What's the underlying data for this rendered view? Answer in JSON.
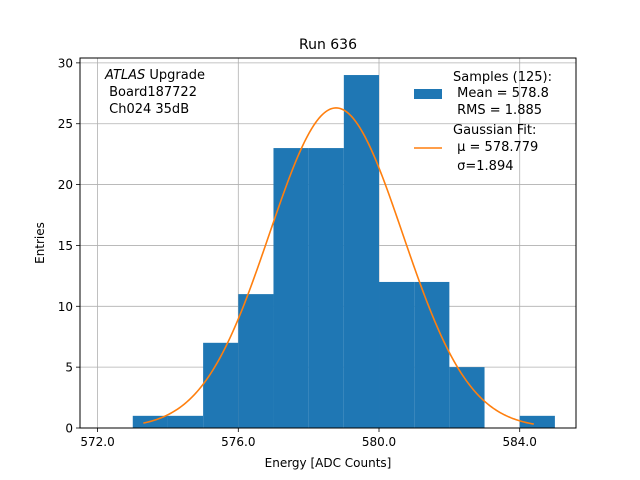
{
  "chart_data": {
    "type": "bar",
    "title": "Run 636",
    "xlabel": "Energy [ADC Counts]",
    "ylabel": "Entries",
    "xlim": [
      571.5,
      585.6
    ],
    "ylim": [
      0,
      30.4
    ],
    "grid": true,
    "xticks": [
      572,
      576,
      580,
      584
    ],
    "xtick_labels": [
      "572.0",
      "576.0",
      "580.0",
      "584.0"
    ],
    "yticks": [
      0,
      5,
      10,
      15,
      20,
      25,
      30
    ],
    "bins": [
      {
        "x0": 573,
        "x1": 574,
        "count": 1
      },
      {
        "x0": 574,
        "x1": 575,
        "count": 1
      },
      {
        "x0": 575,
        "x1": 576,
        "count": 7
      },
      {
        "x0": 576,
        "x1": 577,
        "count": 11
      },
      {
        "x0": 577,
        "x1": 578,
        "count": 23
      },
      {
        "x0": 578,
        "x1": 579,
        "count": 23
      },
      {
        "x0": 579,
        "x1": 580,
        "count": 29
      },
      {
        "x0": 580,
        "x1": 581,
        "count": 12
      },
      {
        "x0": 581,
        "x1": 582,
        "count": 12
      },
      {
        "x0": 582,
        "x1": 583,
        "count": 5
      },
      {
        "x0": 584,
        "x1": 585,
        "count": 1
      }
    ],
    "fit": {
      "mu": 578.779,
      "sigma": 1.894,
      "amplitude": 26.3,
      "x_range": [
        573.3,
        584.4
      ]
    },
    "colors": {
      "histogram": "#1f77b4",
      "fit": "#ff7f0e",
      "grid": "#b0b0b0"
    },
    "legend_placement": "upper right",
    "legend": {
      "hist_line1": "Samples (125):",
      "hist_line2": " Mean = 578.8",
      "hist_line3": " RMS = 1.885",
      "fit_line1": "Gaussian Fit:",
      "fit_line2": " μ = 578.779",
      "fit_line3": " σ=1.894"
    },
    "annotation": {
      "italic": "ATLAS",
      "line1_rest": " Upgrade",
      "line2": " Board187722",
      "line3": " Ch024 35dB"
    }
  }
}
